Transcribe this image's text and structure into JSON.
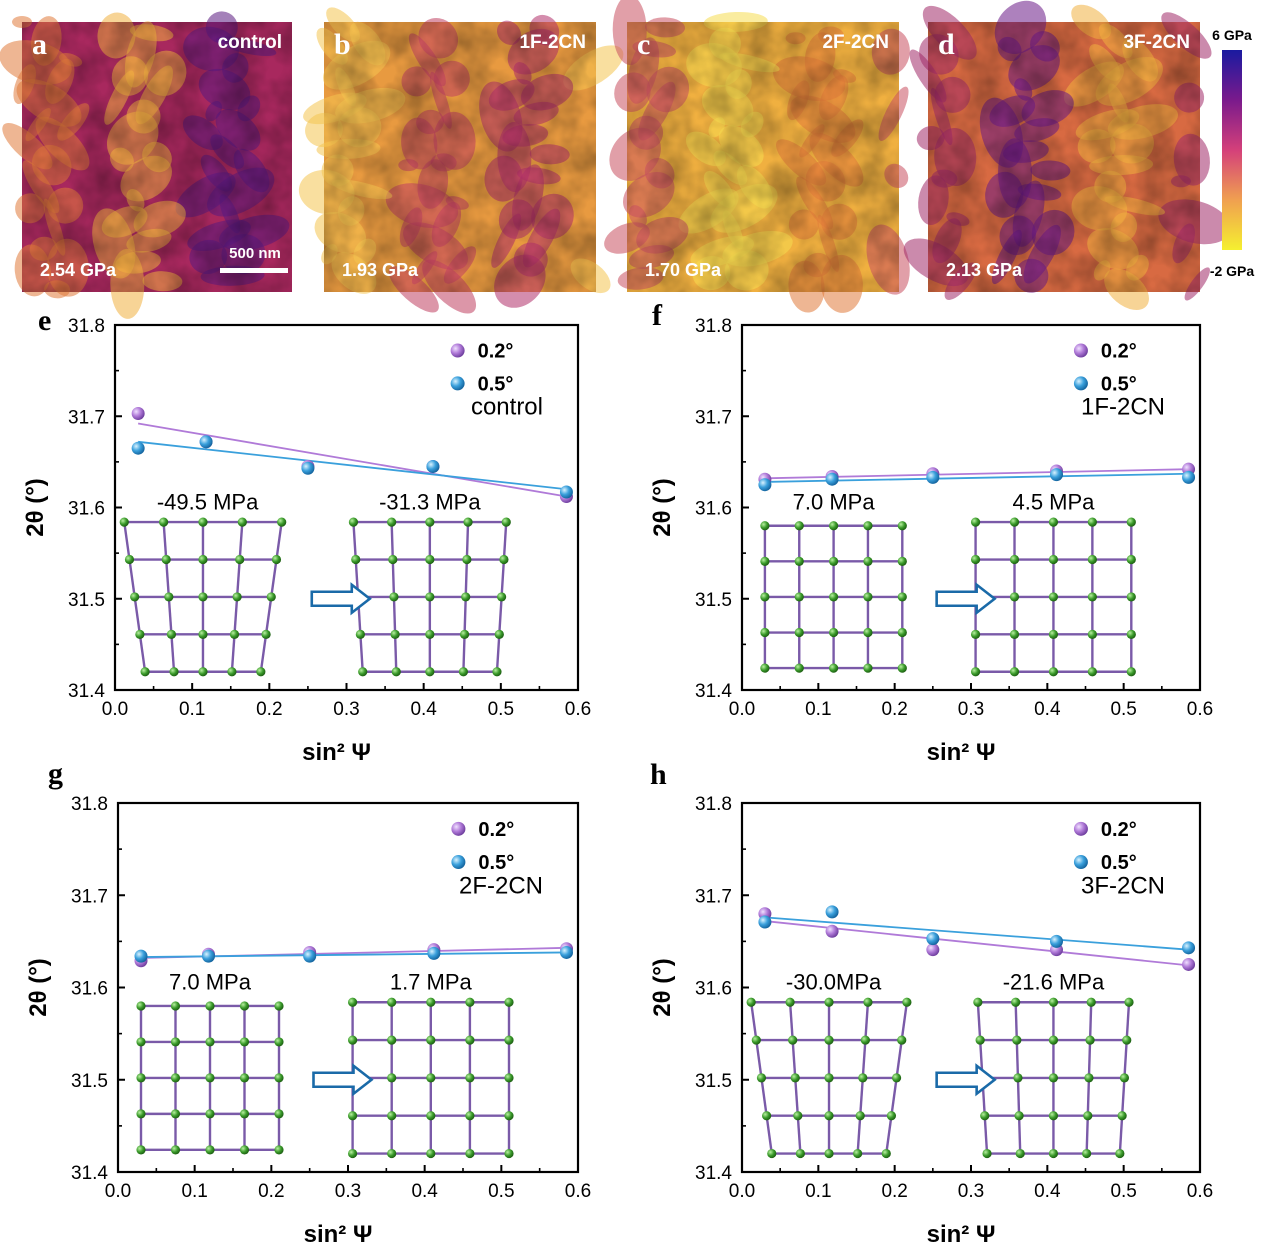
{
  "maps": [
    {
      "letter": "a",
      "sample": "control",
      "value": "2.54 GPa",
      "scalebar": "500 nm"
    },
    {
      "letter": "b",
      "sample": "1F-2CN",
      "value": "1.93 GPa"
    },
    {
      "letter": "c",
      "sample": "2F-2CN",
      "value": "1.70 GPa"
    },
    {
      "letter": "d",
      "sample": "3F-2CN",
      "value": "2.13 GPa"
    }
  ],
  "colorbar": {
    "max_label": "6 GPa",
    "min_label": "-2 GPa",
    "colors": [
      "#1a1aa0",
      "#7a1a8c",
      "#d4407a",
      "#f0a050",
      "#f5f030"
    ]
  },
  "series_colors": {
    "0.2°": "#b07ad8",
    "0.5°": "#3aa0dc"
  },
  "lattice_colors": {
    "bond": "#7a5aa8",
    "atom": "#3a9a2a"
  },
  "chart_data": [
    {
      "type": "scatter",
      "panel": "e",
      "sample": "control",
      "xlabel": "sin² Ψ",
      "ylabel": "2θ (°)",
      "xlim": [
        0,
        0.6
      ],
      "ylim": [
        31.4,
        31.8
      ],
      "xticks": [
        "0.0",
        "0.1",
        "0.2",
        "0.3",
        "0.4",
        "0.5",
        "0.6"
      ],
      "yticks": [
        "31.4",
        "31.5",
        "31.6",
        "31.7",
        "31.8"
      ],
      "legend_position": "top-right",
      "series": [
        {
          "name": "0.2°",
          "x": [
            0.03,
            0.118,
            0.25,
            0.412,
            0.585
          ],
          "y": [
            31.703,
            31.672,
            31.645,
            31.645,
            31.612
          ],
          "fit": [
            [
              0.03,
              31.692
            ],
            [
              0.585,
              31.612
            ]
          ]
        },
        {
          "name": "0.5°",
          "x": [
            0.03,
            0.118,
            0.25,
            0.412,
            0.585
          ],
          "y": [
            31.665,
            31.672,
            31.643,
            31.645,
            31.617
          ],
          "fit": [
            [
              0.03,
              31.672
            ],
            [
              0.585,
              31.62
            ]
          ]
        }
      ],
      "stress_before": "-49.5 MPa",
      "stress_after": "-31.3 MPa",
      "lattice": "compressive"
    },
    {
      "type": "scatter",
      "panel": "f",
      "sample": "1F-2CN",
      "xlabel": "sin² Ψ",
      "ylabel": "2θ (°)",
      "xlim": [
        0,
        0.6
      ],
      "ylim": [
        31.4,
        31.8
      ],
      "xticks": [
        "0.0",
        "0.1",
        "0.2",
        "0.3",
        "0.4",
        "0.5",
        "0.6"
      ],
      "yticks": [
        "31.4",
        "31.5",
        "31.6",
        "31.7",
        "31.8"
      ],
      "legend_position": "top-right",
      "series": [
        {
          "name": "0.2°",
          "x": [
            0.03,
            0.118,
            0.25,
            0.412,
            0.585
          ],
          "y": [
            31.631,
            31.634,
            31.637,
            31.64,
            31.642
          ],
          "fit": [
            [
              0.03,
              31.632
            ],
            [
              0.585,
              31.642
            ]
          ]
        },
        {
          "name": "0.5°",
          "x": [
            0.03,
            0.118,
            0.25,
            0.412,
            0.585
          ],
          "y": [
            31.625,
            31.631,
            31.633,
            31.636,
            31.633
          ],
          "fit": [
            [
              0.03,
              31.628
            ],
            [
              0.585,
              31.637
            ]
          ]
        }
      ],
      "stress_before": "7.0 MPa",
      "stress_after": "4.5 MPa",
      "lattice": "square"
    },
    {
      "type": "scatter",
      "panel": "g",
      "sample": "2F-2CN",
      "xlabel": "sin² Ψ",
      "ylabel": "2θ (°)",
      "xlim": [
        0,
        0.6
      ],
      "ylim": [
        31.4,
        31.8
      ],
      "xticks": [
        "0.0",
        "0.1",
        "0.2",
        "0.3",
        "0.4",
        "0.5",
        "0.6"
      ],
      "yticks": [
        "31.4",
        "31.5",
        "31.6",
        "31.7",
        "31.8"
      ],
      "legend_position": "top-right",
      "series": [
        {
          "name": "0.2°",
          "x": [
            0.03,
            0.118,
            0.25,
            0.412,
            0.585
          ],
          "y": [
            31.629,
            31.636,
            31.638,
            31.641,
            31.642
          ],
          "fit": [
            [
              0.03,
              31.632
            ],
            [
              0.585,
              31.643
            ]
          ]
        },
        {
          "name": "0.5°",
          "x": [
            0.03,
            0.118,
            0.25,
            0.412,
            0.585
          ],
          "y": [
            31.634,
            31.634,
            31.634,
            31.637,
            31.638
          ],
          "fit": [
            [
              0.03,
              31.633
            ],
            [
              0.585,
              31.638
            ]
          ]
        }
      ],
      "stress_before": "7.0 MPa",
      "stress_after": "1.7 MPa",
      "lattice": "square"
    },
    {
      "type": "scatter",
      "panel": "h",
      "sample": "3F-2CN",
      "xlabel": "sin² Ψ",
      "ylabel": "2θ (°)",
      "xlim": [
        0,
        0.6
      ],
      "ylim": [
        31.4,
        31.8
      ],
      "xticks": [
        "0.0",
        "0.1",
        "0.2",
        "0.3",
        "0.4",
        "0.5",
        "0.6"
      ],
      "yticks": [
        "31.4",
        "31.5",
        "31.6",
        "31.7",
        "31.8"
      ],
      "legend_position": "top-right",
      "series": [
        {
          "name": "0.2°",
          "x": [
            0.03,
            0.118,
            0.25,
            0.412,
            0.585
          ],
          "y": [
            31.68,
            31.661,
            31.641,
            31.641,
            31.625
          ],
          "fit": [
            [
              0.03,
              31.672
            ],
            [
              0.585,
              31.624
            ]
          ]
        },
        {
          "name": "0.5°",
          "x": [
            0.03,
            0.118,
            0.25,
            0.412,
            0.585
          ],
          "y": [
            31.671,
            31.682,
            31.653,
            31.65,
            31.643
          ],
          "fit": [
            [
              0.03,
              31.676
            ],
            [
              0.585,
              31.641
            ]
          ]
        }
      ],
      "stress_before": "-30.0MPa",
      "stress_after": "-21.6 MPa",
      "lattice": "compressive"
    }
  ]
}
